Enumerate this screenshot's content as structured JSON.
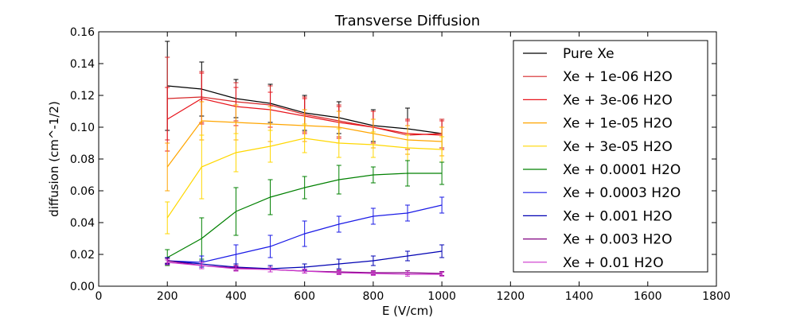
{
  "chart_data": {
    "type": "line",
    "title": "Transverse Diffusion",
    "xlabel": "E (V/cm)",
    "ylabel": "diffusion (cm^-1/2)",
    "xlim": [
      0,
      1800
    ],
    "ylim": [
      0,
      0.16
    ],
    "xticks": [
      "0",
      "200",
      "400",
      "600",
      "800",
      "1000",
      "1200",
      "1400",
      "1600",
      "1800"
    ],
    "yticks": [
      "0.00",
      "0.02",
      "0.04",
      "0.06",
      "0.08",
      "0.10",
      "0.12",
      "0.14",
      "0.16"
    ],
    "legend_position": "top-right",
    "x": [
      200,
      300,
      400,
      500,
      600,
      700,
      800,
      900,
      1000
    ],
    "series": [
      {
        "name": "Pure Xe",
        "color": "#000000",
        "values": [
          0.126,
          0.124,
          0.118,
          0.115,
          0.109,
          0.106,
          0.101,
          0.099,
          0.096
        ],
        "errors": [
          0.028,
          0.017,
          0.012,
          0.012,
          0.011,
          0.01,
          0.01,
          0.013,
          0.009
        ]
      },
      {
        "name": "Xe + 1e-06 H2O",
        "color": "#d62728",
        "values": [
          0.118,
          0.119,
          0.116,
          0.114,
          0.108,
          0.104,
          0.1,
          0.095,
          0.096
        ],
        "errors": [
          0.026,
          0.016,
          0.012,
          0.012,
          0.011,
          0.01,
          0.01,
          0.009,
          0.009
        ]
      },
      {
        "name": "Xe + 3e-06 H2O",
        "color": "#e8131b",
        "values": [
          0.105,
          0.118,
          0.113,
          0.111,
          0.107,
          0.103,
          0.1,
          0.096,
          0.095
        ],
        "errors": [
          0.02,
          0.016,
          0.012,
          0.011,
          0.011,
          0.01,
          0.01,
          0.009,
          0.009
        ]
      },
      {
        "name": "Xe + 1e-05 H2O",
        "color": "#ffa500",
        "values": [
          0.075,
          0.104,
          0.103,
          0.102,
          0.101,
          0.1,
          0.096,
          0.092,
          0.091
        ],
        "errors": [
          0.015,
          0.012,
          0.011,
          0.011,
          0.01,
          0.01,
          0.009,
          0.009,
          0.009
        ]
      },
      {
        "name": "Xe + 3e-05 H2O",
        "color": "#ffd700",
        "values": [
          0.043,
          0.075,
          0.084,
          0.088,
          0.093,
          0.09,
          0.089,
          0.087,
          0.086
        ],
        "errors": [
          0.01,
          0.02,
          0.012,
          0.01,
          0.009,
          0.009,
          0.008,
          0.008,
          0.008
        ]
      },
      {
        "name": "Xe + 0.0001 H2O",
        "color": "#008000",
        "values": [
          0.018,
          0.03,
          0.047,
          0.056,
          0.062,
          0.067,
          0.07,
          0.071,
          0.071
        ],
        "errors": [
          0.005,
          0.013,
          0.015,
          0.011,
          0.007,
          0.009,
          0.005,
          0.008,
          0.007
        ]
      },
      {
        "name": "Xe + 0.0003 H2O",
        "color": "#1a1ae6",
        "values": [
          0.016,
          0.015,
          0.02,
          0.025,
          0.033,
          0.039,
          0.044,
          0.046,
          0.051
        ],
        "errors": [
          0.002,
          0.004,
          0.006,
          0.007,
          0.008,
          0.005,
          0.005,
          0.005,
          0.005
        ]
      },
      {
        "name": "Xe + 0.001 H2O",
        "color": "#0000b3",
        "values": [
          0.016,
          0.014,
          0.012,
          0.011,
          0.012,
          0.014,
          0.016,
          0.019,
          0.022
        ],
        "errors": [
          0.002,
          0.002,
          0.002,
          0.002,
          0.002,
          0.003,
          0.003,
          0.003,
          0.004
        ]
      },
      {
        "name": "Xe + 0.003 H2O",
        "color": "#800080",
        "values": [
          0.016,
          0.013,
          0.0115,
          0.0105,
          0.0095,
          0.009,
          0.0085,
          0.0085,
          0.008
        ],
        "errors": [
          0.0015,
          0.002,
          0.0015,
          0.0015,
          0.0012,
          0.0012,
          0.0012,
          0.0012,
          0.0012
        ]
      },
      {
        "name": "Xe + 0.01 H2O",
        "color": "#cc33cc",
        "values": [
          0.015,
          0.013,
          0.011,
          0.0105,
          0.0095,
          0.0085,
          0.008,
          0.0075,
          0.0075
        ],
        "errors": [
          0.0015,
          0.002,
          0.0015,
          0.0015,
          0.0012,
          0.0012,
          0.0012,
          0.0012,
          0.0012
        ]
      }
    ]
  }
}
